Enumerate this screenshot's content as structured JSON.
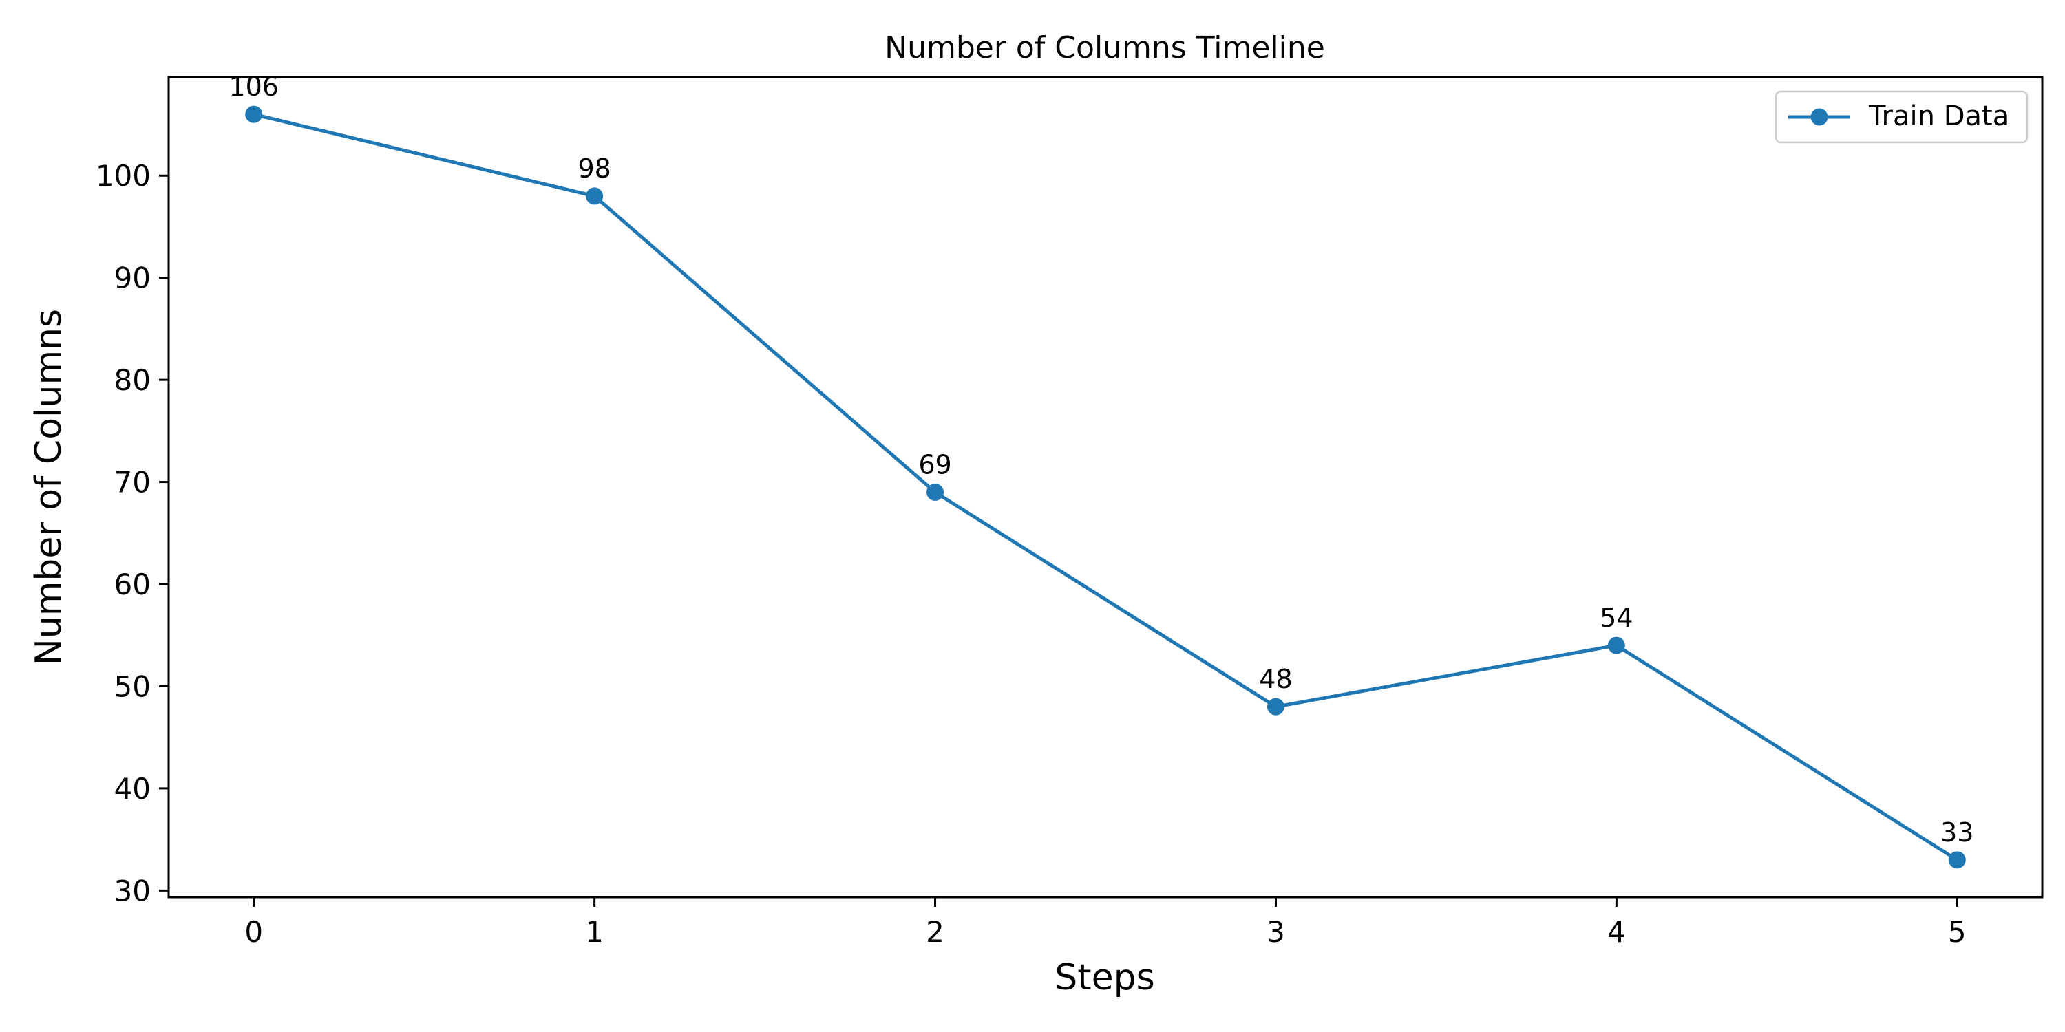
{
  "chart_data": {
    "type": "line",
    "title": "Number of Columns Timeline",
    "xlabel": "Steps",
    "ylabel": "Number of Columns",
    "x": [
      0,
      1,
      2,
      3,
      4,
      5
    ],
    "xticks": [
      "0",
      "1",
      "2",
      "3",
      "4",
      "5"
    ],
    "yticks": [
      "30",
      "40",
      "50",
      "60",
      "70",
      "80",
      "90",
      "100"
    ],
    "xlim": [
      -0.25,
      5.25
    ],
    "ylim": [
      29.35,
      109.65
    ],
    "grid": false,
    "legend_position": "top-right",
    "series": [
      {
        "name": "Train Data",
        "color": "#1f77b4",
        "marker": "circle",
        "values": [
          106,
          98,
          69,
          48,
          54,
          33
        ],
        "data_labels": [
          "106",
          "98",
          "69",
          "48",
          "54",
          "33"
        ]
      }
    ]
  }
}
